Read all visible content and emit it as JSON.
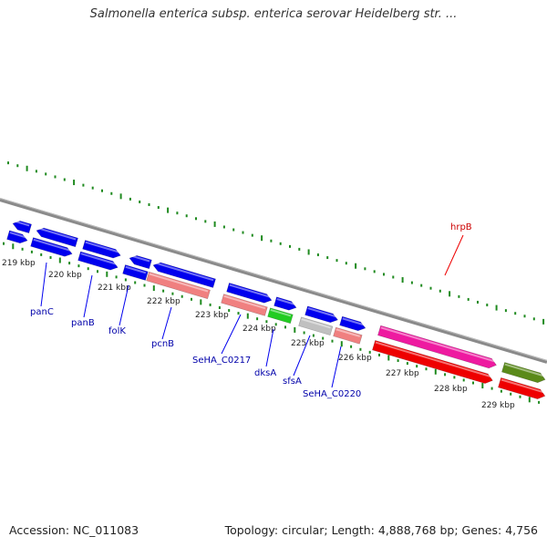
{
  "title": "Salmonella enterica subsp. enterica serovar Heidelberg str. ...",
  "accession_text": "Accession: NC_011083",
  "summary_text": "Topology: circular; Length: 4,888,768 bp; Genes: 4,756",
  "colors": {
    "backbone": "#8a8a8a",
    "tick": "#1f8a1f",
    "blue": "#0000ee",
    "salmon": "#f08080",
    "green": "#22cc22",
    "gray": "#c0c0c0",
    "magenta": "#ee1aa0",
    "red": "#ee0000",
    "olive": "#5a8a1a",
    "blue_label": "#0000aa",
    "red_label": "#cc0000"
  },
  "scale_labels": [
    "219 kbp",
    "220 kbp",
    "221 kbp",
    "222 kbp",
    "223 kbp",
    "224 kbp",
    "225 kbp",
    "226 kbp",
    "227 kbp",
    "228 kbp",
    "229 kbp"
  ],
  "gene_labels": [
    {
      "name": "panC",
      "color": "blue"
    },
    {
      "name": "panB",
      "color": "blue"
    },
    {
      "name": "folK",
      "color": "blue"
    },
    {
      "name": "pcnB",
      "color": "blue"
    },
    {
      "name": "SeHA_C0217",
      "color": "blue"
    },
    {
      "name": "dksA",
      "color": "blue"
    },
    {
      "name": "sfsA",
      "color": "blue"
    },
    {
      "name": "SeHA_C0220",
      "color": "blue"
    },
    {
      "name": "hrpB",
      "color": "red"
    }
  ]
}
